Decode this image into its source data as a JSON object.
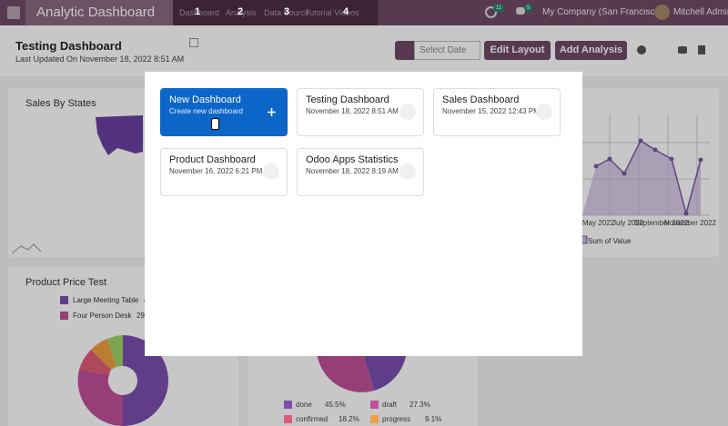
{
  "navbar": {
    "app_name": "Analytic Dashboard",
    "menu": [
      {
        "label": "Dashboard",
        "shortcut": "1"
      },
      {
        "label": "Analysis",
        "shortcut": "2"
      },
      {
        "label": "Data Source",
        "shortcut": "3"
      },
      {
        "label": "Tutorial Videos",
        "shortcut": "4"
      }
    ],
    "activity_count": "11",
    "message_count": "5",
    "company": "My Company (San Francisco)",
    "user": "Mitchell Admin"
  },
  "header": {
    "title": "Testing Dashboard",
    "last_updated": "Last Updated On November 18, 2022 8:51 AM",
    "date_placeholder": "Select Date",
    "edit_layout": "Edit Layout",
    "add_analysis": "Add Analysis"
  },
  "background": {
    "sales_by_states": {
      "title": "Sales By States"
    },
    "line_chart": {
      "x_labels": [
        "May 2022",
        "July 2022",
        "September 2022",
        "November 2022"
      ],
      "legend": "Sum of Value"
    },
    "product_price": {
      "title": "Product Price Test",
      "legend": [
        {
          "label": "Large Meeting Table",
          "value": "4"
        },
        {
          "label": "Four Person Desk",
          "value": "29."
        }
      ]
    },
    "state_pie": {
      "legend": [
        {
          "label": "done",
          "value": "45.5%"
        },
        {
          "label": "draft",
          "value": "27.3%"
        },
        {
          "label": "confirmed",
          "value": "18.2%"
        },
        {
          "label": "progress",
          "value": "9.1%"
        }
      ]
    }
  },
  "modal": {
    "cards": [
      {
        "title": "New Dashboard",
        "subtitle": "Create new dashboard"
      },
      {
        "title": "Testing Dashboard",
        "subtitle": "November 18, 2022 8:51 AM"
      },
      {
        "title": "Sales Dashboard",
        "subtitle": "November 15, 2022 12:43 PM"
      },
      {
        "title": "Product Dashboard",
        "subtitle": "November 16, 2022 6:21 PM"
      },
      {
        "title": "Odoo Apps Statistics",
        "subtitle": "November 18, 2022 8:19 AM"
      }
    ]
  }
}
